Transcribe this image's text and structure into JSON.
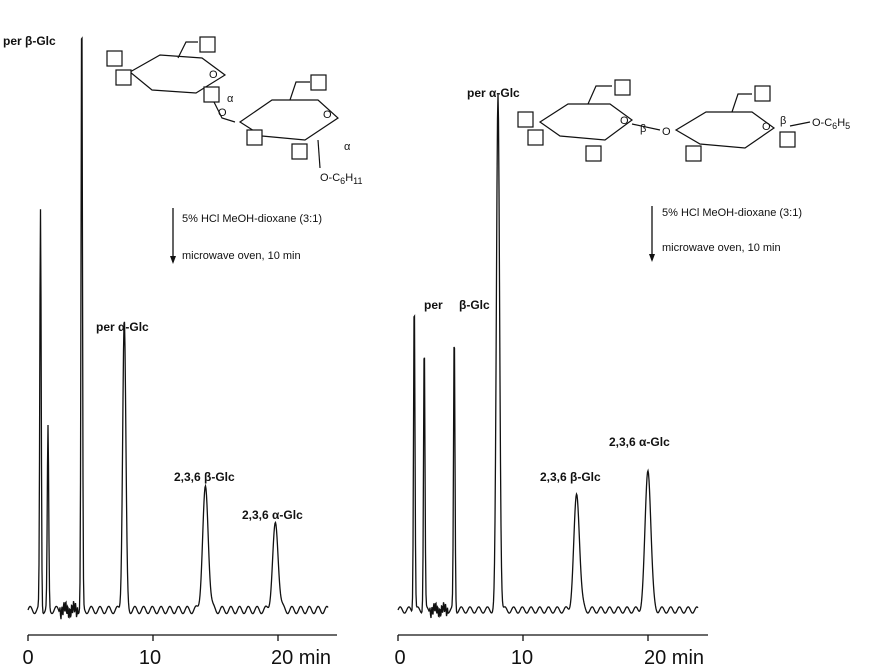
{
  "chart_data": [
    {
      "type": "line",
      "panel": "left",
      "x_unit": "min",
      "xlim": [
        0,
        24
      ],
      "ticks": [
        "0",
        "10",
        "20 min"
      ],
      "peaks": [
        {
          "x": 1.0,
          "height": 0.66
        },
        {
          "x": 1.6,
          "height": 0.3
        },
        {
          "x": 4.3,
          "height": 1.0,
          "label": "per β-Glc"
        },
        {
          "x": 7.7,
          "height": 0.48,
          "label": "per α-Glc"
        },
        {
          "x": 14.2,
          "height": 0.2,
          "label": "2,3,6 β-Glc"
        },
        {
          "x": 19.8,
          "height": 0.14,
          "label": "2,3,6 α-Glc"
        }
      ],
      "reaction": {
        "conditions": [
          "5% HCl MeOH-dioxane (3:1)",
          "microwave oven, 10 min"
        ],
        "linkages": [
          "α",
          "α"
        ],
        "substituent": {
          "main": "O-C",
          "subscript1": "6",
          "H": "H",
          "subscript2": "11"
        }
      }
    },
    {
      "type": "line",
      "panel": "right",
      "x_unit": "min",
      "xlim": [
        0,
        24
      ],
      "ticks": [
        "0",
        "10",
        "20 min"
      ],
      "peaks": [
        {
          "x": 1.3,
          "height": 0.6,
          "label": "per"
        },
        {
          "x": 2.1,
          "height": 0.51
        },
        {
          "x": 4.5,
          "height": 0.53,
          "label": "β-Glc"
        },
        {
          "x": 8.0,
          "height": 0.98,
          "label": "per α-Glc"
        },
        {
          "x": 14.3,
          "height": 0.22,
          "label": "2,3,6 β-Glc"
        },
        {
          "x": 20.0,
          "height": 0.27,
          "label": "2,3,6 α-Glc"
        }
      ],
      "reaction": {
        "conditions": [
          "5% HCl MeOH-dioxane (3:1)",
          "microwave oven, 10 min"
        ],
        "linkages": [
          "β",
          "β"
        ],
        "substituent": {
          "main": "O-C",
          "subscript1": "6",
          "H": "H",
          "subscript2": "5"
        }
      }
    }
  ]
}
